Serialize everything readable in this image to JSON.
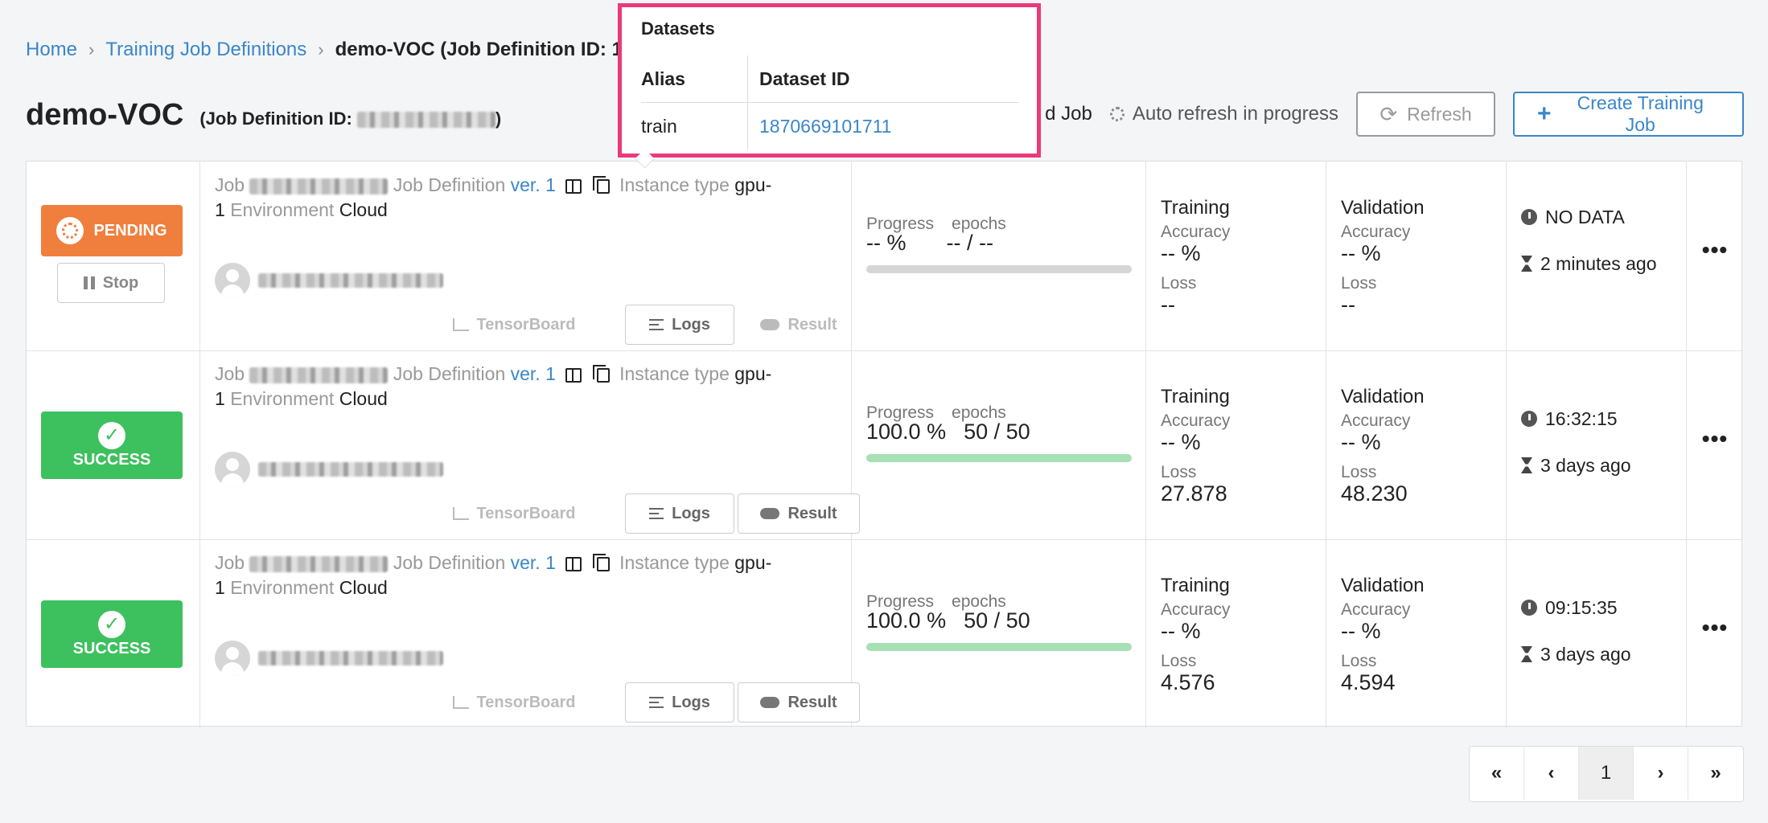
{
  "breadcrumb": {
    "home": "Home",
    "definitions": "Training Job Definitions",
    "current": "demo-VOC (Job Definition ID: 1"
  },
  "header": {
    "title": "demo-VOC",
    "id_label": "(Job Definition ID:",
    "id_close": ")"
  },
  "toolbar": {
    "hidden_label": "d Job",
    "auto_refresh": "Auto refresh in progress",
    "refresh": "Refresh",
    "create": "Create Training Job"
  },
  "popover": {
    "title": "Datasets",
    "col_alias": "Alias",
    "col_id": "Dataset ID",
    "alias": "train",
    "dataset_id": "1870669101711"
  },
  "labels": {
    "job": "Job",
    "job_definition": "Job Definition",
    "instance_type": "Instance type",
    "environment": "Environment",
    "tensorboard": "TensorBoard",
    "logs": "Logs",
    "result": "Result",
    "stop": "Stop",
    "progress": "Progress",
    "epochs": "epochs",
    "training": "Training",
    "validation": "Validation",
    "accuracy": "Accuracy",
    "loss": "Loss"
  },
  "rows": [
    {
      "status": "PENDING",
      "version": "ver. 1",
      "instance": "gpu-",
      "instance2": "1",
      "environment": "Cloud",
      "progress": "-- %",
      "progress_fraction": 0,
      "epochs": "-- / --",
      "train_acc": "-- %",
      "train_loss": "--",
      "val_acc": "-- %",
      "val_loss": "--",
      "time": "NO DATA",
      "ago": "2 minutes ago"
    },
    {
      "status": "SUCCESS",
      "version": "ver. 1",
      "instance": "gpu-",
      "instance2": "1",
      "environment": "Cloud",
      "progress": "100.0 %",
      "progress_fraction": 1,
      "epochs": "50 / 50",
      "train_acc": "-- %",
      "train_loss": "27.878",
      "val_acc": "-- %",
      "val_loss": "48.230",
      "time": "16:32:15",
      "ago": "3 days ago"
    },
    {
      "status": "SUCCESS",
      "version": "ver. 1",
      "instance": "gpu-",
      "instance2": "1",
      "environment": "Cloud",
      "progress": "100.0 %",
      "progress_fraction": 1,
      "epochs": "50 / 50",
      "train_acc": "-- %",
      "train_loss": "4.576",
      "val_acc": "-- %",
      "val_loss": "4.594",
      "time": "09:15:35",
      "ago": "3 days ago"
    }
  ],
  "pager": {
    "first": "«",
    "prev": "‹",
    "page": "1",
    "next": "›",
    "last": "»"
  },
  "colors": {
    "accent": "#3a86c9",
    "pending": "#f07e3c",
    "success": "#3dc05e",
    "highlight": "#ea3a7b"
  }
}
